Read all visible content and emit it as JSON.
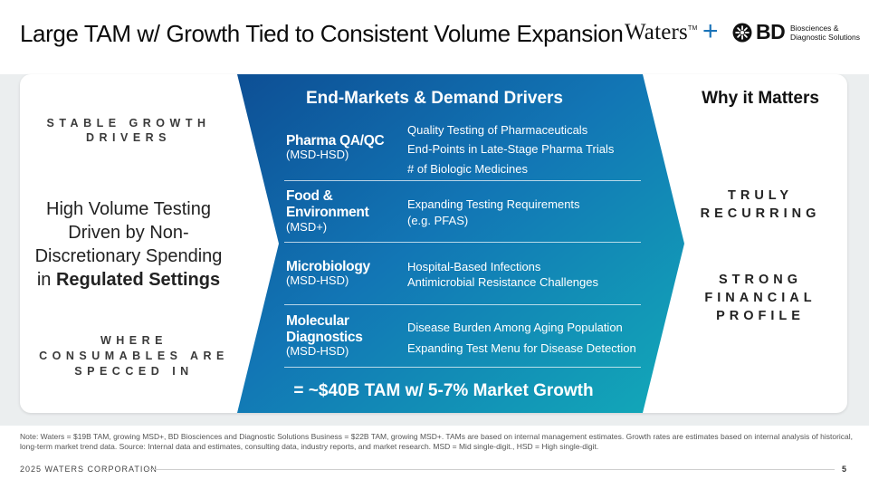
{
  "title": "Large TAM w/ Growth Tied to Consistent Volume Expansion",
  "logos": {
    "waters": "Waters",
    "tm": "TM",
    "plus": "+",
    "bd": "BD",
    "bd_sub_line1": "Biosciences &",
    "bd_sub_line2": "Diagnostic Solutions"
  },
  "left": {
    "top_label_line1": "STABLE GROWTH",
    "top_label_line2": "DRIVERS",
    "main_line1": "High Volume Testing",
    "main_line2": "Driven by Non-",
    "main_line3": "Discretionary Spending",
    "main_line4_prefix": "in ",
    "main_line4_bold": "Regulated Settings",
    "bottom_label_line1": "WHERE",
    "bottom_label_line2": "CONSUMABLES ARE",
    "bottom_label_line3": "SPECCED IN"
  },
  "center": {
    "header": "End-Markets & Demand Drivers",
    "segments": [
      {
        "name_line1": "Pharma QA/QC",
        "name_line2": "",
        "code": "(MSD-HSD)",
        "drivers": [
          "Quality Testing of Pharmaceuticals",
          "End-Points in Late-Stage Pharma Trials",
          "# of Biologic Medicines"
        ]
      },
      {
        "name_line1": "Food &",
        "name_line2": "Environment",
        "code": "(MSD+)",
        "drivers": [
          "Expanding Testing Requirements",
          "(e.g. PFAS)"
        ]
      },
      {
        "name_line1": "Microbiology",
        "name_line2": "",
        "code": "(MSD-HSD)",
        "drivers": [
          "Hospital-Based Infections",
          "Antimicrobial Resistance Challenges"
        ]
      },
      {
        "name_line1": "Molecular",
        "name_line2": "Diagnostics",
        "code": "(MSD-HSD)",
        "drivers": [
          "Disease Burden Among Aging Population",
          "Expanding Test Menu for Disease Detection"
        ]
      }
    ],
    "total": "=  ~$40B TAM w/ 5-7% Market Growth"
  },
  "right": {
    "header": "Why it Matters",
    "item1_line1": "TRULY",
    "item1_line2": "RECURRING",
    "item2_line1": "STRONG",
    "item2_line2": "FINANCIAL",
    "item2_line3": "PROFILE"
  },
  "note": "Note: Waters = $19B TAM, growing MSD+, BD Biosciences and Diagnostic Solutions Business = $22B TAM, growing MSD+. TAMs are based on internal management estimates. Growth rates are estimates based on internal analysis of historical, long-term market trend data. Source: Internal data and estimates, consulting data, industry reports, and market research. MSD = Mid single-digit., HSD = High single-digit.",
  "footer": {
    "company": "2025 WATERS CORPORATION",
    "page": "5"
  },
  "colors": {
    "chevron_start": "#0d4f95",
    "chevron_mid": "#1276b5",
    "chevron_end": "#12aab8",
    "plus": "#1a73b8"
  }
}
